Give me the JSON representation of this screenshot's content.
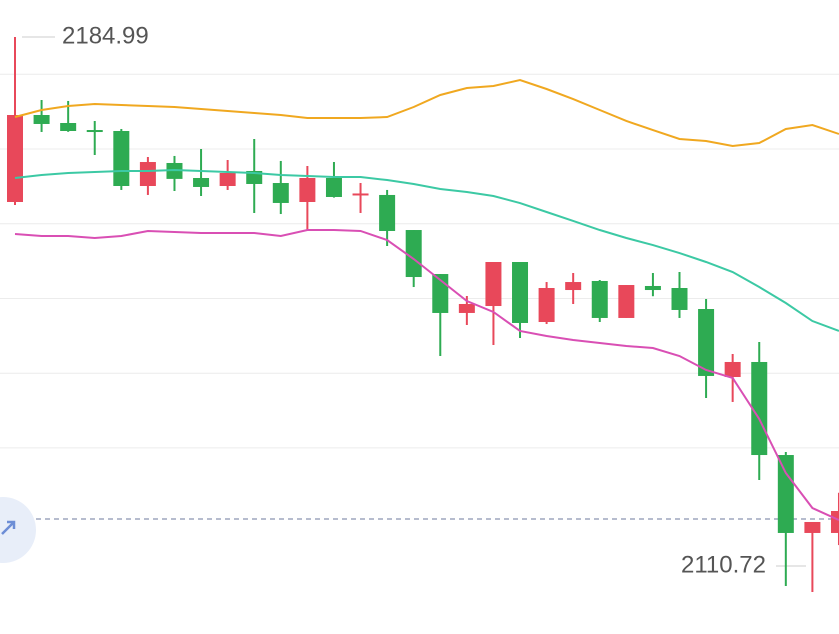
{
  "chart_data": {
    "type": "candlestick",
    "ylim": [
      2105.1,
      2189.94
    ],
    "gridlines": [
      2180,
      2170,
      2160,
      2150,
      2140,
      2130
    ],
    "up_color": "#e8485a",
    "down_color": "#2eab52",
    "candles": [
      {
        "open": 2162.91,
        "high": 2184.99,
        "low": 2162.51,
        "close": 2174.55
      },
      {
        "open": 2174.55,
        "high": 2176.56,
        "low": 2172.28,
        "close": 2173.35
      },
      {
        "open": 2173.48,
        "high": 2176.43,
        "low": 2172.3,
        "close": 2172.41
      },
      {
        "open": 2172.54,
        "high": 2173.75,
        "low": 2169.2,
        "close": 2172.5
      },
      {
        "open": 2172.41,
        "high": 2172.68,
        "low": 2164.52,
        "close": 2165.05
      },
      {
        "open": 2165.05,
        "high": 2168.93,
        "low": 2163.85,
        "close": 2168.26
      },
      {
        "open": 2168.13,
        "high": 2169.07,
        "low": 2164.38,
        "close": 2166.0
      },
      {
        "open": 2166.12,
        "high": 2170.0,
        "low": 2163.71,
        "close": 2164.92
      },
      {
        "open": 2165.05,
        "high": 2168.53,
        "low": 2164.52,
        "close": 2166.79
      },
      {
        "open": 2167.06,
        "high": 2171.34,
        "low": 2161.44,
        "close": 2165.32
      },
      {
        "open": 2165.45,
        "high": 2168.4,
        "low": 2161.3,
        "close": 2162.78
      },
      {
        "open": 2162.91,
        "high": 2167.73,
        "low": 2159.16,
        "close": 2166.12
      },
      {
        "open": 2166.12,
        "high": 2168.26,
        "low": 2163.5,
        "close": 2163.58
      },
      {
        "open": 2163.98,
        "high": 2165.45,
        "low": 2161.44,
        "close": 2164.05
      },
      {
        "open": 2163.85,
        "high": 2164.52,
        "low": 2157.02,
        "close": 2159.03
      },
      {
        "open": 2159.16,
        "high": 2159.16,
        "low": 2151.53,
        "close": 2152.87
      },
      {
        "open": 2153.27,
        "high": 2153.27,
        "low": 2142.3,
        "close": 2148.06
      },
      {
        "open": 2148.06,
        "high": 2150.33,
        "low": 2146.45,
        "close": 2149.26
      },
      {
        "open": 2148.99,
        "high": 2154.88,
        "low": 2143.77,
        "close": 2154.88
      },
      {
        "open": 2154.88,
        "high": 2154.88,
        "low": 2144.71,
        "close": 2146.72
      },
      {
        "open": 2146.85,
        "high": 2152.2,
        "low": 2146.58,
        "close": 2151.4
      },
      {
        "open": 2151.13,
        "high": 2153.41,
        "low": 2149.26,
        "close": 2152.2
      },
      {
        "open": 2152.34,
        "high": 2152.47,
        "low": 2146.85,
        "close": 2147.39
      },
      {
        "open": 2147.39,
        "high": 2151.8,
        "low": 2147.39,
        "close": 2151.8
      },
      {
        "open": 2151.67,
        "high": 2153.41,
        "low": 2150.3,
        "close": 2151.13
      },
      {
        "open": 2151.4,
        "high": 2153.54,
        "low": 2147.39,
        "close": 2148.46
      },
      {
        "open": 2148.59,
        "high": 2149.93,
        "low": 2136.68,
        "close": 2139.63
      },
      {
        "open": 2139.49,
        "high": 2142.57,
        "low": 2136.15,
        "close": 2141.5
      },
      {
        "open": 2141.5,
        "high": 2144.17,
        "low": 2125.71,
        "close": 2129.05
      },
      {
        "open": 2129.05,
        "high": 2129.45,
        "low": 2111.52,
        "close": 2118.62
      },
      {
        "open": 2118.62,
        "high": 2120.09,
        "low": 2110.72,
        "close": 2120.09
      },
      {
        "open": 2118.62,
        "high": 2124.0,
        "low": 2117.0,
        "close": 2121.56
      }
    ],
    "lines": [
      {
        "color": "#f0a820",
        "values": [
          2174.28,
          2175.22,
          2175.76,
          2176.02,
          2175.89,
          2175.76,
          2175.62,
          2175.35,
          2175.09,
          2174.82,
          2174.55,
          2174.15,
          2174.15,
          2174.15,
          2174.28,
          2175.62,
          2177.23,
          2178.16,
          2178.43,
          2179.23,
          2178.03,
          2176.69,
          2175.22,
          2173.75,
          2172.54,
          2171.34,
          2171.07,
          2170.4,
          2170.8,
          2172.68,
          2173.21,
          2172.01
        ]
      },
      {
        "color": "#3cc9a4",
        "values": [
          2166.12,
          2166.52,
          2166.79,
          2166.92,
          2167.06,
          2167.06,
          2167.19,
          2167.06,
          2166.92,
          2166.79,
          2166.52,
          2166.39,
          2166.25,
          2166.25,
          2165.85,
          2165.32,
          2164.65,
          2164.25,
          2163.71,
          2162.77,
          2161.57,
          2160.37,
          2159.16,
          2158.09,
          2157.15,
          2156.08,
          2154.88,
          2153.54,
          2151.53,
          2149.39,
          2146.98,
          2145.65
        ]
      },
      {
        "color": "#d94fb4",
        "values": [
          2158.63,
          2158.36,
          2158.36,
          2158.09,
          2158.36,
          2159.03,
          2158.89,
          2158.76,
          2158.76,
          2158.76,
          2158.36,
          2159.16,
          2159.16,
          2159.03,
          2157.82,
          2155.28,
          2152.47,
          2149.66,
          2148.19,
          2145.65,
          2144.98,
          2144.44,
          2144.04,
          2143.64,
          2143.37,
          2142.3,
          2140.43,
          2139.36,
          2133.87,
          2126.64,
          2121.96,
          2120.35
        ]
      }
    ],
    "current_price": 2120.49,
    "max_label": "2184.99",
    "min_label": "2110.72"
  }
}
